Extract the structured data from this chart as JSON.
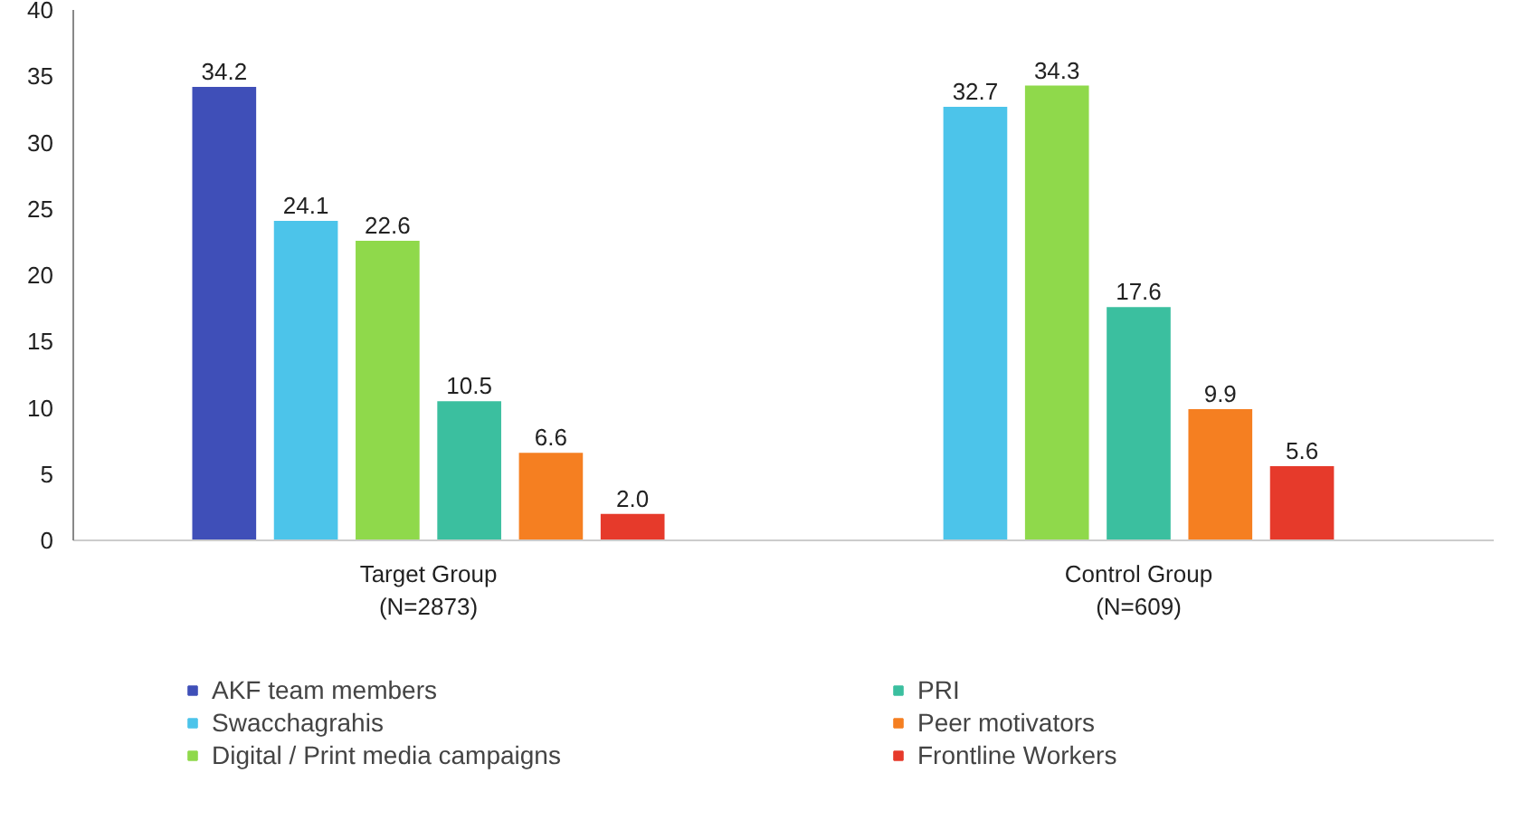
{
  "chart_data": {
    "type": "bar",
    "categories": [
      "Target Group\n(N=2873)",
      "Control Group\n(N=609)"
    ],
    "series": [
      {
        "name": "AKF team members",
        "color": "#3f4fb8",
        "values": [
          34.2,
          null
        ],
        "value_labels": [
          "34.2",
          null
        ]
      },
      {
        "name": "Swacchagrahis",
        "color": "#4cc4ea",
        "values": [
          24.1,
          32.7
        ],
        "value_labels": [
          "24.1",
          "32.7"
        ]
      },
      {
        "name": "Digital / Print media campaigns",
        "color": "#8fd94b",
        "values": [
          22.6,
          34.3
        ],
        "value_labels": [
          "22.6",
          "34.3"
        ]
      },
      {
        "name": "PRI",
        "color": "#3bbf9f",
        "values": [
          10.5,
          17.6
        ],
        "value_labels": [
          "10.5",
          "17.6"
        ]
      },
      {
        "name": "Peer motivators",
        "color": "#f57f21",
        "values": [
          6.6,
          9.9
        ],
        "value_labels": [
          "6.6",
          "9.9"
        ]
      },
      {
        "name": "Frontline Workers",
        "color": "#e63a2b",
        "values": [
          2.0,
          5.6
        ],
        "value_labels": [
          "2.0",
          "5.6"
        ]
      }
    ],
    "ylim": [
      0,
      40
    ],
    "yticks": [
      0,
      5,
      10,
      15,
      20,
      25,
      30,
      35,
      40
    ],
    "grid": false,
    "legend": "bottom"
  }
}
